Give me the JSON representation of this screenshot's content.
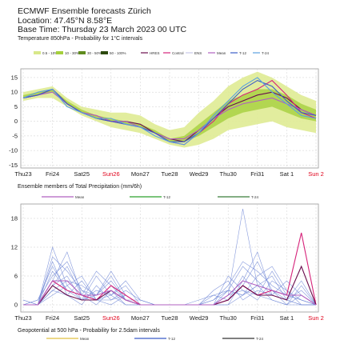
{
  "header": {
    "line1": "ECMWF Ensemble forecasts Zürich",
    "line2": "Location:  47.45°N 8.58°E",
    "line3": "Base Time: Thursday 23 March 2023 00 UTC"
  },
  "panel1": {
    "title": "Temperature 850hPa - Probability for 1°C intervals",
    "legend": [
      {
        "label": "0.5 - 10%",
        "color": "#d8e88a"
      },
      {
        "label": "10 - 30%",
        "color": "#a4cf3c"
      },
      {
        "label": "30 - 50%",
        "color": "#5f8b1e"
      },
      {
        "label": "50 - 100%",
        "color": "#2c4a0e"
      },
      {
        "label": "HRES",
        "color": "#6a0d4d"
      },
      {
        "label": "Control",
        "color": "#d6237a"
      },
      {
        "label": "ENS",
        "color": "#c8c8e8"
      },
      {
        "label": "Mean",
        "color": "#b060c0"
      },
      {
        "label": "T-12",
        "color": "#3a5cc8"
      },
      {
        "label": "T-24",
        "color": "#5aa0e0"
      }
    ]
  },
  "panel2": {
    "title": "Ensemble members of Total Precipitation (mm/6h)",
    "legend": [
      {
        "label": "Mean",
        "color": "#b060c0"
      },
      {
        "label": "T-12",
        "color": "#2ca02c"
      },
      {
        "label": "T-24",
        "color": "#3a7d3a"
      }
    ]
  },
  "panel3": {
    "title": "Geopotential at 500 hPa - Probability for 2.5dam intervals",
    "legend": [
      {
        "label": "Mean",
        "color": "#e0c040"
      },
      {
        "label": "T-12",
        "color": "#3a5cc8"
      },
      {
        "label": "T-24",
        "color": "#333333"
      }
    ]
  },
  "chart_data": [
    {
      "type": "line",
      "title": "Temperature 850hPa - Probability for 1°C intervals",
      "days": [
        "Thu23",
        "Fri24",
        "Sat25",
        "Sun26",
        "Mon27",
        "Tue28",
        "Wed29",
        "Thu30",
        "Fri31",
        "Sat 1",
        "Sun 2"
      ],
      "sunday_color": "#e0001a",
      "yticks": [
        15,
        10,
        5,
        0,
        -5,
        -10,
        -15
      ],
      "ylim": [
        -16,
        18
      ],
      "x": [
        0,
        0.5,
        1,
        1.5,
        2,
        2.5,
        3,
        3.5,
        4,
        4.5,
        5,
        5.5,
        6,
        6.5,
        7,
        7.5,
        8,
        8.5,
        9,
        9.5,
        10
      ],
      "series": [
        {
          "name": "HRES",
          "values": [
            8,
            9,
            11,
            6,
            3,
            1,
            0,
            0,
            -1,
            -4,
            -6,
            -7,
            -3,
            1,
            5,
            7,
            9,
            10,
            8,
            4,
            2
          ]
        },
        {
          "name": "Control",
          "values": [
            8,
            9,
            11,
            6,
            3,
            2,
            0,
            -1,
            -2,
            -4,
            -7,
            -8,
            -4,
            0,
            6,
            9,
            11,
            14,
            9,
            3,
            1
          ]
        },
        {
          "name": "Mean",
          "values": [
            8,
            9,
            10,
            6,
            3,
            2,
            0,
            0,
            -2,
            -4,
            -6,
            -6,
            -3,
            1,
            4,
            6,
            7,
            8,
            6,
            4,
            2
          ]
        },
        {
          "name": "T-12",
          "values": [
            8,
            9,
            11,
            6,
            3,
            1,
            0,
            -1,
            -2,
            -4,
            -7,
            -7,
            -4,
            1,
            6,
            11,
            14,
            12,
            7,
            3,
            2
          ]
        },
        {
          "name": "T-24",
          "values": [
            8,
            10,
            11,
            5,
            3,
            1,
            1,
            -1,
            -2,
            -5,
            -7,
            -8,
            -4,
            2,
            7,
            12,
            15,
            10,
            6,
            2,
            1
          ]
        }
      ],
      "band_low": [
        7,
        8,
        8,
        5,
        2,
        0,
        -2,
        -3,
        -4,
        -6,
        -8,
        -9,
        -8,
        -6,
        -3,
        -2,
        -1,
        0,
        -2,
        -3,
        -4
      ],
      "band_high": [
        10,
        11,
        12,
        8,
        5,
        4,
        3,
        3,
        2,
        -1,
        -3,
        -2,
        3,
        7,
        12,
        15,
        17,
        15,
        12,
        9,
        7
      ],
      "core_low": [
        8,
        9,
        10,
        6,
        3,
        1,
        0,
        -1,
        -2,
        -4,
        -7,
        -7,
        -5,
        -2,
        1,
        3,
        4,
        5,
        3,
        1,
        0
      ],
      "core_high": [
        9,
        10,
        11,
        7,
        4,
        2,
        1,
        0,
        -1,
        -3,
        -6,
        -5,
        -1,
        3,
        7,
        9,
        11,
        11,
        9,
        6,
        4
      ]
    },
    {
      "type": "line",
      "title": "Ensemble members of Total Precipitation (mm/6h)",
      "days": [
        "Thu23",
        "Fri24",
        "Sat25",
        "Sun26",
        "Mon27",
        "Tue28",
        "Wed29",
        "Thu30",
        "Fri31",
        "Sat 1",
        "Sun 2"
      ],
      "yticks": [
        18,
        12,
        6,
        0
      ],
      "ylim": [
        -1.5,
        21
      ],
      "x": [
        0,
        0.5,
        1,
        1.5,
        2,
        2.5,
        3,
        3.5,
        4,
        4.5,
        5,
        5.5,
        6,
        6.5,
        7,
        7.5,
        8,
        8.5,
        9,
        9.5,
        10
      ],
      "members": [
        [
          0,
          0,
          4,
          8,
          2,
          0,
          3,
          1,
          0,
          0,
          0,
          0,
          0,
          0,
          0,
          2,
          4,
          3,
          1,
          5,
          0
        ],
        [
          1,
          0,
          7,
          3,
          1,
          6,
          2,
          0,
          0,
          0,
          0,
          0,
          0,
          1,
          3,
          8,
          5,
          2,
          1,
          0,
          0
        ],
        [
          0,
          0,
          12,
          4,
          1,
          2,
          5,
          1,
          1,
          0,
          0,
          0,
          0,
          0,
          2,
          20,
          4,
          1,
          0,
          2,
          0
        ],
        [
          0,
          1,
          6,
          9,
          3,
          1,
          2,
          4,
          0,
          0,
          0,
          0,
          0,
          0,
          6,
          3,
          2,
          7,
          2,
          1,
          0
        ],
        [
          0,
          0,
          3,
          5,
          4,
          2,
          7,
          2,
          0,
          0,
          0,
          0,
          1,
          2,
          1,
          4,
          9,
          3,
          0,
          0,
          0
        ],
        [
          1,
          0,
          9,
          2,
          0,
          4,
          1,
          3,
          1,
          0,
          0,
          0,
          0,
          0,
          3,
          2,
          6,
          8,
          3,
          1,
          0
        ],
        [
          0,
          0,
          5,
          11,
          2,
          1,
          3,
          0,
          0,
          0,
          0,
          0,
          0,
          3,
          5,
          1,
          3,
          2,
          5,
          2,
          0
        ],
        [
          0,
          0,
          2,
          4,
          6,
          1,
          0,
          2,
          0,
          0,
          0,
          0,
          0,
          0,
          1,
          6,
          2,
          1,
          0,
          4,
          0
        ],
        [
          0,
          1,
          8,
          3,
          2,
          7,
          4,
          1,
          0,
          0,
          0,
          0,
          0,
          1,
          4,
          9,
          7,
          4,
          2,
          1,
          0
        ],
        [
          0,
          0,
          4,
          6,
          1,
          3,
          2,
          5,
          1,
          0,
          0,
          0,
          0,
          0,
          2,
          3,
          1,
          5,
          3,
          0,
          0
        ],
        [
          0,
          0,
          10,
          7,
          3,
          2,
          6,
          1,
          0,
          0,
          0,
          0,
          0,
          0,
          0,
          5,
          11,
          2,
          1,
          3,
          0
        ],
        [
          0,
          0,
          3,
          2,
          5,
          1,
          1,
          2,
          0,
          0,
          0,
          0,
          0,
          2,
          3,
          2,
          4,
          6,
          1,
          0,
          0
        ]
      ],
      "series": [
        {
          "name": "Control",
          "values": [
            0,
            0,
            5,
            3,
            2,
            1,
            4,
            2,
            0,
            0,
            0,
            0,
            0,
            0,
            1,
            4,
            2,
            3,
            2,
            15,
            0
          ]
        },
        {
          "name": "HRES",
          "values": [
            0,
            0,
            4,
            2,
            1,
            1,
            3,
            1,
            0,
            0,
            0,
            0,
            0,
            0,
            1,
            4,
            2,
            2,
            1,
            8,
            0
          ]
        },
        {
          "name": "Mean",
          "values": [
            0,
            0,
            5,
            5,
            2,
            2,
            3,
            1,
            0,
            0,
            0,
            0,
            0,
            0,
            2,
            5,
            4,
            3,
            2,
            2,
            0
          ]
        }
      ]
    }
  ]
}
